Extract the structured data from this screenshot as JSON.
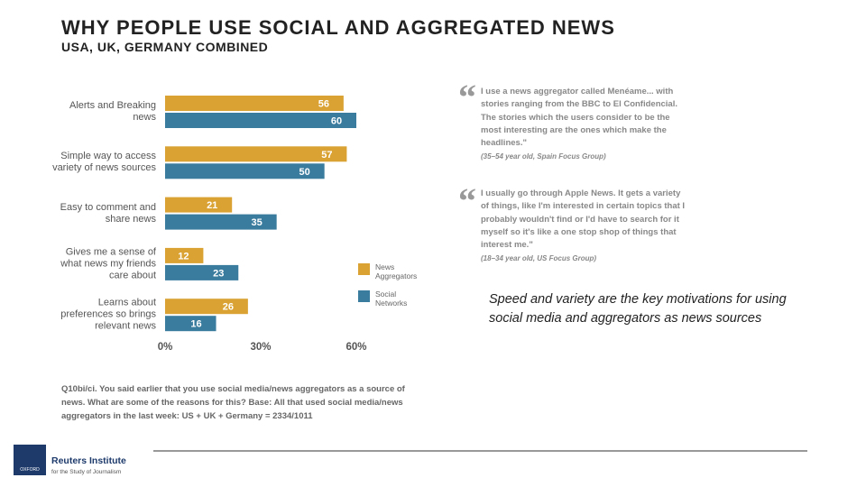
{
  "slide": {
    "title": "WHY PEOPLE USE SOCIAL AND AGGREGATED NEWS",
    "subtitle": "USA, UK, GERMANY COMBINED",
    "quotes": [
      {
        "text": "I use a news aggregator called Menéame... with stories ranging from the BBC to El Confidencial. The stories which the users consider to be the most interesting are the ones which make the headlines.\"",
        "source": "(35–54 year old, Spain Focus Group)"
      },
      {
        "text": "I usually go through Apple News. It gets a variety of things, like I'm interested in certain topics that I probably wouldn't find or I'd have to search for it myself so it's like a one stop shop of things that interest me.\"",
        "source": "(18–34 year old, US Focus Group)"
      }
    ],
    "takeaway": "Speed and variety are the key motivations for using social media and aggregators as news sources",
    "footnote": "Q10bi/ci. You said earlier that you use social media/news aggregators as a source of news. What are some of the reasons for this? Base: All that used social media/news aggregators in the last week: US + UK + Germany = 2334/1011",
    "logo": {
      "crest": "OXFORD",
      "name": "Reuters Institute",
      "tagline": "for the Study of Journalism"
    }
  },
  "chart_data": {
    "type": "hbar",
    "categories": [
      "Alerts and Breaking news",
      "Simple way to access variety of news sources",
      "Easy to comment and share news",
      "Gives me a sense of what news my friends care about",
      "Learns about preferences so brings relevant news"
    ],
    "series": [
      {
        "name": "News Aggregators",
        "color": "#d9a232",
        "values": [
          56,
          57,
          21,
          12,
          26
        ]
      },
      {
        "name": "Social Networks",
        "color": "#3a7c9e",
        "values": [
          60,
          50,
          35,
          23,
          16
        ]
      }
    ],
    "xlim": [
      0,
      60
    ],
    "xticks": [
      {
        "value": 0,
        "label": "0%"
      },
      {
        "value": 30,
        "label": "30%"
      },
      {
        "value": 60,
        "label": "60%"
      }
    ]
  }
}
